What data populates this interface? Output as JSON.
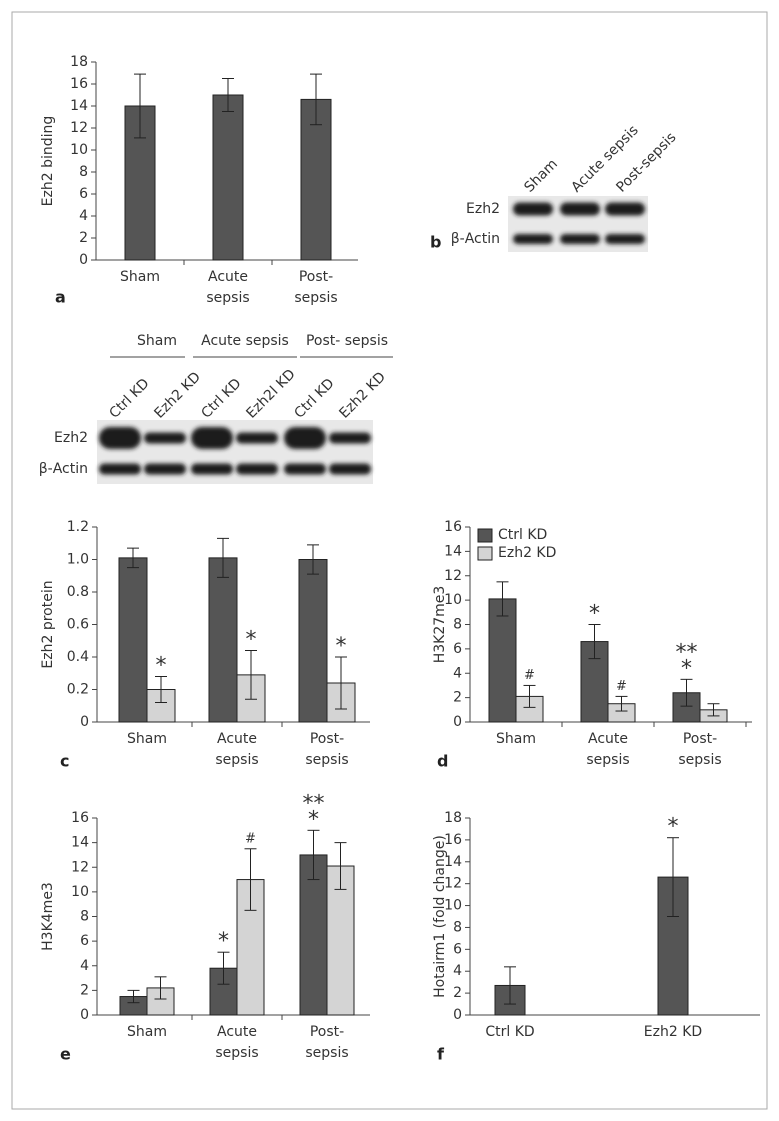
{
  "chart_data": [
    {
      "type": "bar",
      "panel": "a",
      "ylabel": "Ezh2 binding",
      "categories": [
        [
          "Sham"
        ],
        [
          "Acute",
          "sepsis"
        ],
        [
          "Post-",
          "sepsis"
        ]
      ],
      "values": [
        14,
        15,
        14.6
      ],
      "errors": [
        2.9,
        1.5,
        2.3
      ],
      "color": "#555555",
      "ylim": [
        0,
        18
      ],
      "yticks": [
        0,
        2,
        4,
        6,
        8,
        10,
        12,
        14,
        16,
        18
      ]
    },
    {
      "type": "bar",
      "panel": "c",
      "ylabel": "Ezh2 protein",
      "categories": [
        [
          "Sham"
        ],
        [
          "Acute",
          "sepsis"
        ],
        [
          "Post-",
          "sepsis"
        ]
      ],
      "series": [
        {
          "name": "Ctrl KD",
          "color": "#555555",
          "values": [
            1.01,
            1.01,
            1.0
          ],
          "errors": [
            0.06,
            0.12,
            0.09
          ],
          "annotations": [
            [],
            [],
            []
          ]
        },
        {
          "name": "Ezh2 KD",
          "color": "#d4d4d4",
          "values": [
            0.2,
            0.29,
            0.24
          ],
          "errors": [
            0.08,
            0.15,
            0.16
          ],
          "annotations": [
            [
              "*"
            ],
            [
              "*"
            ],
            [
              "*"
            ]
          ]
        }
      ],
      "ylim": [
        0,
        1.2
      ],
      "yticks": [
        0,
        0.2,
        0.4,
        0.6,
        0.8,
        {
          "value": 1,
          "label": "1.0"
        },
        1.2
      ]
    },
    {
      "type": "bar",
      "panel": "d",
      "ylabel": "H3K27me3",
      "legend": "upper left",
      "categories": [
        [
          "Sham"
        ],
        [
          "Acute",
          "sepsis"
        ],
        [
          "Post-",
          "sepsis"
        ]
      ],
      "series": [
        {
          "name": "Ctrl KD",
          "color": "#555555",
          "values": [
            10.1,
            6.6,
            2.4
          ],
          "errors": [
            1.4,
            1.4,
            1.1
          ],
          "annotations": [
            [],
            [
              "*"
            ],
            [
              "**",
              "*"
            ]
          ]
        },
        {
          "name": "Ezh2 KD",
          "color": "#d4d4d4",
          "values": [
            2.1,
            1.5,
            1.0
          ],
          "errors": [
            0.9,
            0.6,
            0.5
          ],
          "annotations": [
            [
              "#"
            ],
            [
              "#"
            ],
            []
          ]
        }
      ],
      "ylim": [
        0,
        16
      ],
      "yticks": [
        0,
        2,
        4,
        6,
        8,
        10,
        12,
        14,
        16
      ]
    },
    {
      "type": "bar",
      "panel": "e",
      "ylabel": "H3K4me3",
      "categories": [
        [
          "Sham"
        ],
        [
          "Acute",
          "sepsis"
        ],
        [
          "Post-",
          "sepsis"
        ]
      ],
      "series": [
        {
          "name": "Ctrl KD",
          "color": "#555555",
          "values": [
            1.5,
            3.8,
            13.0
          ],
          "errors": [
            0.5,
            1.3,
            2.0
          ],
          "annotations": [
            [],
            [
              "*"
            ],
            [
              "**",
              "*"
            ]
          ]
        },
        {
          "name": "Ezh2 KD",
          "color": "#d4d4d4",
          "values": [
            2.2,
            11.0,
            12.1
          ],
          "errors": [
            0.9,
            2.5,
            1.9
          ],
          "annotations": [
            [],
            [
              "#"
            ],
            []
          ]
        }
      ],
      "ylim": [
        0,
        16
      ],
      "yticks": [
        0,
        2,
        4,
        6,
        8,
        10,
        12,
        14,
        16
      ]
    },
    {
      "type": "bar",
      "panel": "f",
      "ylabel": "Hotairm1 (fold change)",
      "categories": [
        [
          "Ctrl KD"
        ],
        [
          "Ezh2 KD"
        ]
      ],
      "values": [
        2.7,
        12.6
      ],
      "errors": [
        1.7,
        3.6
      ],
      "color": "#555555",
      "annotations": [
        [],
        [
          "*"
        ]
      ],
      "ylim": [
        0,
        18
      ],
      "yticks": [
        0,
        2,
        4,
        6,
        8,
        10,
        12,
        14,
        16,
        18
      ]
    }
  ],
  "blots": [
    {
      "panel": "b",
      "lanes": [
        "Sham",
        "Acute sepsis",
        "Post-sepsis"
      ],
      "rows": [
        "Ezh2",
        "β-Actin"
      ]
    },
    {
      "groups": [
        "Sham",
        "Acute sepsis",
        "Post- sepsis"
      ],
      "lanes": [
        "Ctrl KD",
        "Ezh2 KD",
        "Ctrl KD",
        "Ezh2l KD",
        "Ctrl KD",
        "Ezh2 KD"
      ],
      "rows": [
        "Ezh2",
        "β-Actin"
      ]
    }
  ]
}
